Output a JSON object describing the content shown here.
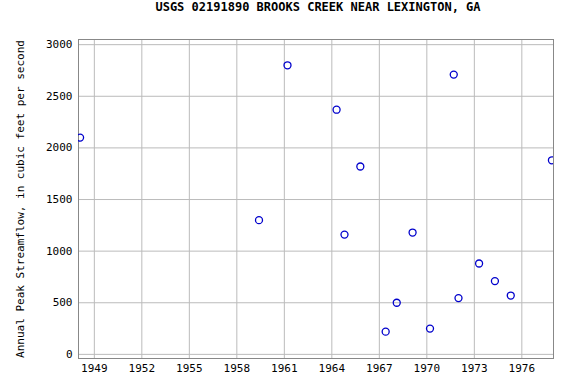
{
  "chart_data": {
    "type": "scatter",
    "title": "USGS 02191890 BROOKS CREEK NEAR LEXINGTON, GA",
    "y_label": "Annual Peak Streamflow, in cubic feet per second",
    "x": [
      1948.1,
      1959.4,
      1961.2,
      1964.3,
      1964.8,
      1965.8,
      1967.4,
      1968.1,
      1969.1,
      1970.2,
      1971.7,
      1972.0,
      1973.3,
      1974.3,
      1975.3,
      1977.9
    ],
    "values": [
      2100,
      1300,
      2800,
      2370,
      1160,
      1820,
      220,
      500,
      1180,
      250,
      2710,
      545,
      880,
      710,
      570,
      1880
    ],
    "color": "#0000cc",
    "marker": "open_circle",
    "xlim": [
      1948,
      1978
    ],
    "xticks": [
      1949,
      1952,
      1955,
      1958,
      1961,
      1964,
      1967,
      1970,
      1973,
      1976
    ],
    "ylim": [
      -40,
      3050
    ],
    "yticks": [
      0,
      500,
      1000,
      1500,
      2000,
      2500,
      3000
    ],
    "grid": true
  }
}
